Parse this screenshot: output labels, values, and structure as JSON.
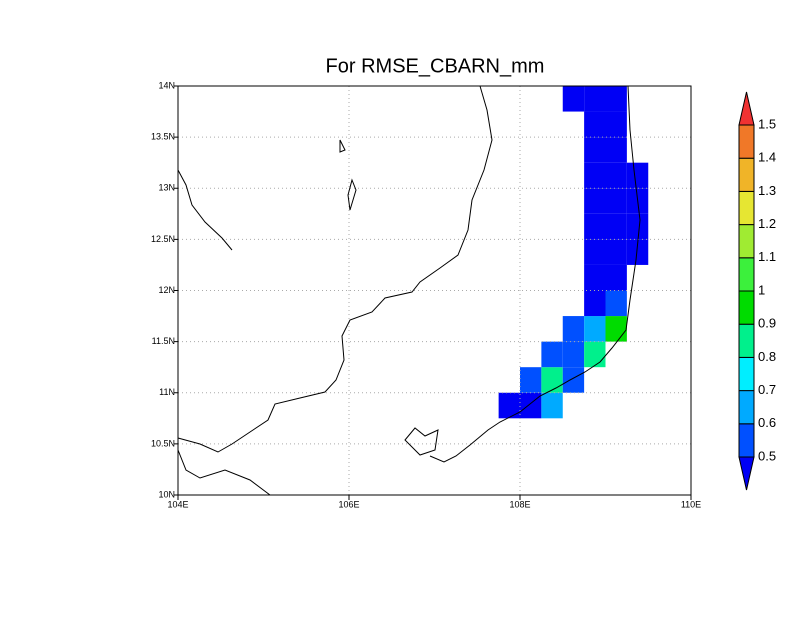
{
  "chart_data": {
    "type": "heatmap",
    "title": "For RMSE_CBARN_mm",
    "x": [
      107.875,
      108.125,
      108.375,
      108.125,
      108.375,
      108.625,
      108.375,
      108.625,
      108.875,
      108.625,
      108.875,
      109.125,
      108.875,
      109.125,
      108.875,
      109.125,
      108.875,
      109.125,
      109.375,
      108.875,
      109.125,
      109.375,
      108.875,
      109.125,
      109.375,
      108.875,
      109.125,
      109.375,
      108.875,
      109.125,
      108.875,
      109.125,
      108.625,
      108.875,
      109.125
    ],
    "y": [
      10.875,
      10.875,
      10.875,
      11.125,
      11.125,
      11.125,
      11.375,
      11.375,
      11.375,
      11.625,
      11.625,
      11.625,
      11.875,
      11.875,
      12.125,
      12.125,
      12.375,
      12.375,
      12.375,
      12.625,
      12.625,
      12.625,
      12.875,
      12.875,
      12.875,
      13.125,
      13.125,
      13.125,
      13.375,
      13.375,
      13.625,
      13.625,
      13.875,
      13.875,
      13.875
    ],
    "values": [
      0.45,
      0.45,
      0.65,
      0.55,
      0.85,
      0.55,
      0.55,
      0.55,
      0.85,
      0.55,
      0.65,
      0.95,
      0.45,
      0.55,
      0.45,
      0.45,
      0.45,
      0.45,
      0.45,
      0.45,
      0.45,
      0.45,
      0.45,
      0.45,
      0.45,
      0.45,
      0.45,
      0.45,
      0.45,
      0.45,
      0.45,
      0.45,
      0.45,
      0.45,
      0.45
    ],
    "levels": [
      0.5,
      0.6,
      0.7,
      0.8,
      0.9,
      1,
      1.1,
      1.2,
      1.3,
      1.4,
      1.5
    ],
    "colors": [
      "#0000f5",
      "#0050ff",
      "#00aaff",
      "#00eeff",
      "#00f08c",
      "#00dc00",
      "#3cf03c",
      "#a0eb32",
      "#e6e632",
      "#f0b428",
      "#f07828",
      "#f03232"
    ],
    "xlim": [
      104,
      110
    ],
    "ylim": [
      10,
      14
    ],
    "xticks": [
      {
        "value": 104,
        "label": "104E"
      },
      {
        "value": 106,
        "label": "106E"
      },
      {
        "value": 108,
        "label": "108E"
      },
      {
        "value": 110,
        "label": "110E"
      }
    ],
    "yticks": [
      {
        "value": 10,
        "label": "10N"
      },
      {
        "value": 10.5,
        "label": "10.5N"
      },
      {
        "value": 11,
        "label": "11N"
      },
      {
        "value": 11.5,
        "label": "11.5N"
      },
      {
        "value": 12,
        "label": "12N"
      },
      {
        "value": 12.5,
        "label": "12.5N"
      },
      {
        "value": 13,
        "label": "13N"
      },
      {
        "value": 13.5,
        "label": "13.5N"
      },
      {
        "value": 14,
        "label": "14N"
      }
    ],
    "grid": true
  }
}
